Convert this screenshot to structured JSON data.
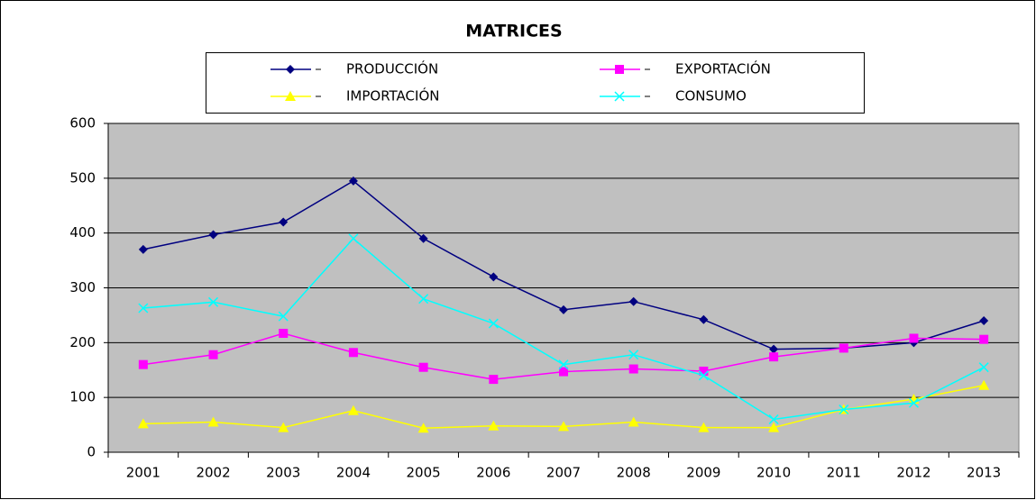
{
  "chart_data": {
    "type": "line",
    "title": "MATRICES",
    "categories": [
      "2001",
      "2002",
      "2003",
      "2004",
      "2005",
      "2006",
      "2007",
      "2008",
      "2009",
      "2010",
      "2011",
      "2012",
      "2013"
    ],
    "series": [
      {
        "name": "PRODUCCIÓN",
        "color": "#000080",
        "marker": "diamond",
        "values": [
          370,
          397,
          420,
          495,
          390,
          320,
          260,
          275,
          242,
          188,
          190,
          200,
          240
        ]
      },
      {
        "name": "EXPORTACIÓN",
        "color": "#ff00ff",
        "marker": "square",
        "values": [
          160,
          178,
          217,
          182,
          155,
          133,
          147,
          152,
          148,
          174,
          190,
          208,
          206
        ]
      },
      {
        "name": "IMPORTACIÓN",
        "color": "#ffff00",
        "marker": "triangle",
        "values": [
          52,
          55,
          45,
          76,
          44,
          48,
          47,
          55,
          45,
          45,
          78,
          97,
          122
        ]
      },
      {
        "name": "CONSUMO",
        "color": "#00ffff",
        "marker": "x",
        "values": [
          263,
          274,
          248,
          390,
          280,
          235,
          160,
          178,
          140,
          60,
          78,
          90,
          155
        ]
      }
    ],
    "ylim": [
      0,
      600
    ],
    "yticks": [
      0,
      100,
      200,
      300,
      400,
      500,
      600
    ],
    "grid": true
  }
}
